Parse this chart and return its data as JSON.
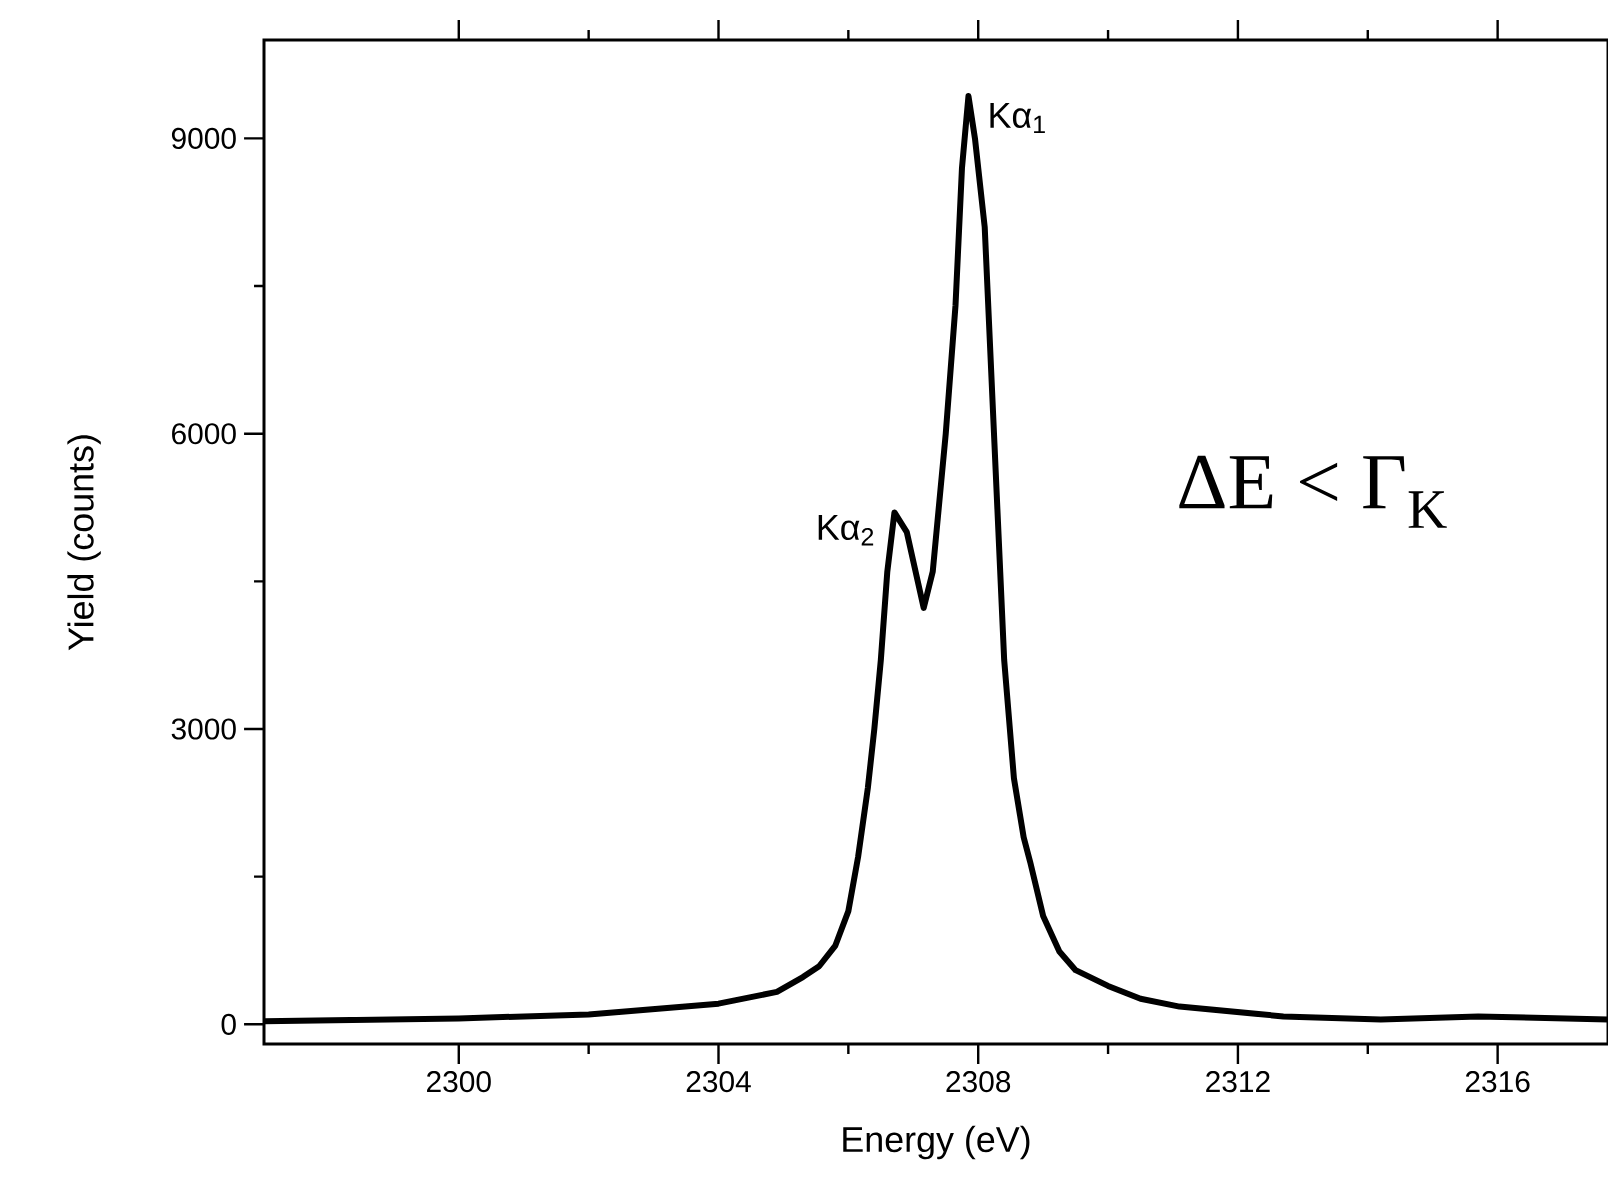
{
  "chart_data": {
    "type": "line",
    "xlabel": "Energy (eV)",
    "ylabel": "Yield (counts)",
    "xlim": [
      2297,
      2317.7
    ],
    "ylim": [
      -200,
      10000
    ],
    "xticks": [
      2300,
      2304,
      2308,
      2312,
      2316
    ],
    "yticks": [
      0,
      3000,
      6000,
      9000
    ],
    "series": [
      {
        "color": "#000000",
        "x": [
          2297.0,
          2300,
          2302,
          2304,
          2304.9,
          2305.3,
          2305.55,
          2305.8,
          2306.0,
          2306.15,
          2306.3,
          2306.4,
          2306.5,
          2306.6,
          2306.71,
          2306.9,
          2307.16,
          2307.3,
          2307.5,
          2307.65,
          2307.75,
          2307.85,
          2307.95,
          2308.1,
          2308.25,
          2308.4,
          2308.55,
          2308.7,
          2308.8,
          2309.0,
          2309.25,
          2309.5,
          2310.0,
          2310.5,
          2311.1,
          2312.7,
          2314.2,
          2315.7,
          2317.7
        ],
        "values": [
          30,
          60,
          100,
          210,
          330,
          480,
          590,
          800,
          1150,
          1700,
          2400,
          3000,
          3700,
          4600,
          5200,
          5000,
          4230,
          4600,
          6000,
          7300,
          8700,
          9430,
          9000,
          8100,
          5900,
          3700,
          2500,
          1900,
          1650,
          1100,
          740,
          550,
          390,
          260,
          180,
          80,
          50,
          80,
          50
        ]
      }
    ],
    "annotations": [
      {
        "text": "Kα$_{1}$",
        "x": 2307.85,
        "y": 9430
      },
      {
        "text": "Kα$_{2}$",
        "x": 2306.71,
        "y": 5200
      },
      "ΔE < Γ$_{K}$"
    ],
    "grid": false
  }
}
